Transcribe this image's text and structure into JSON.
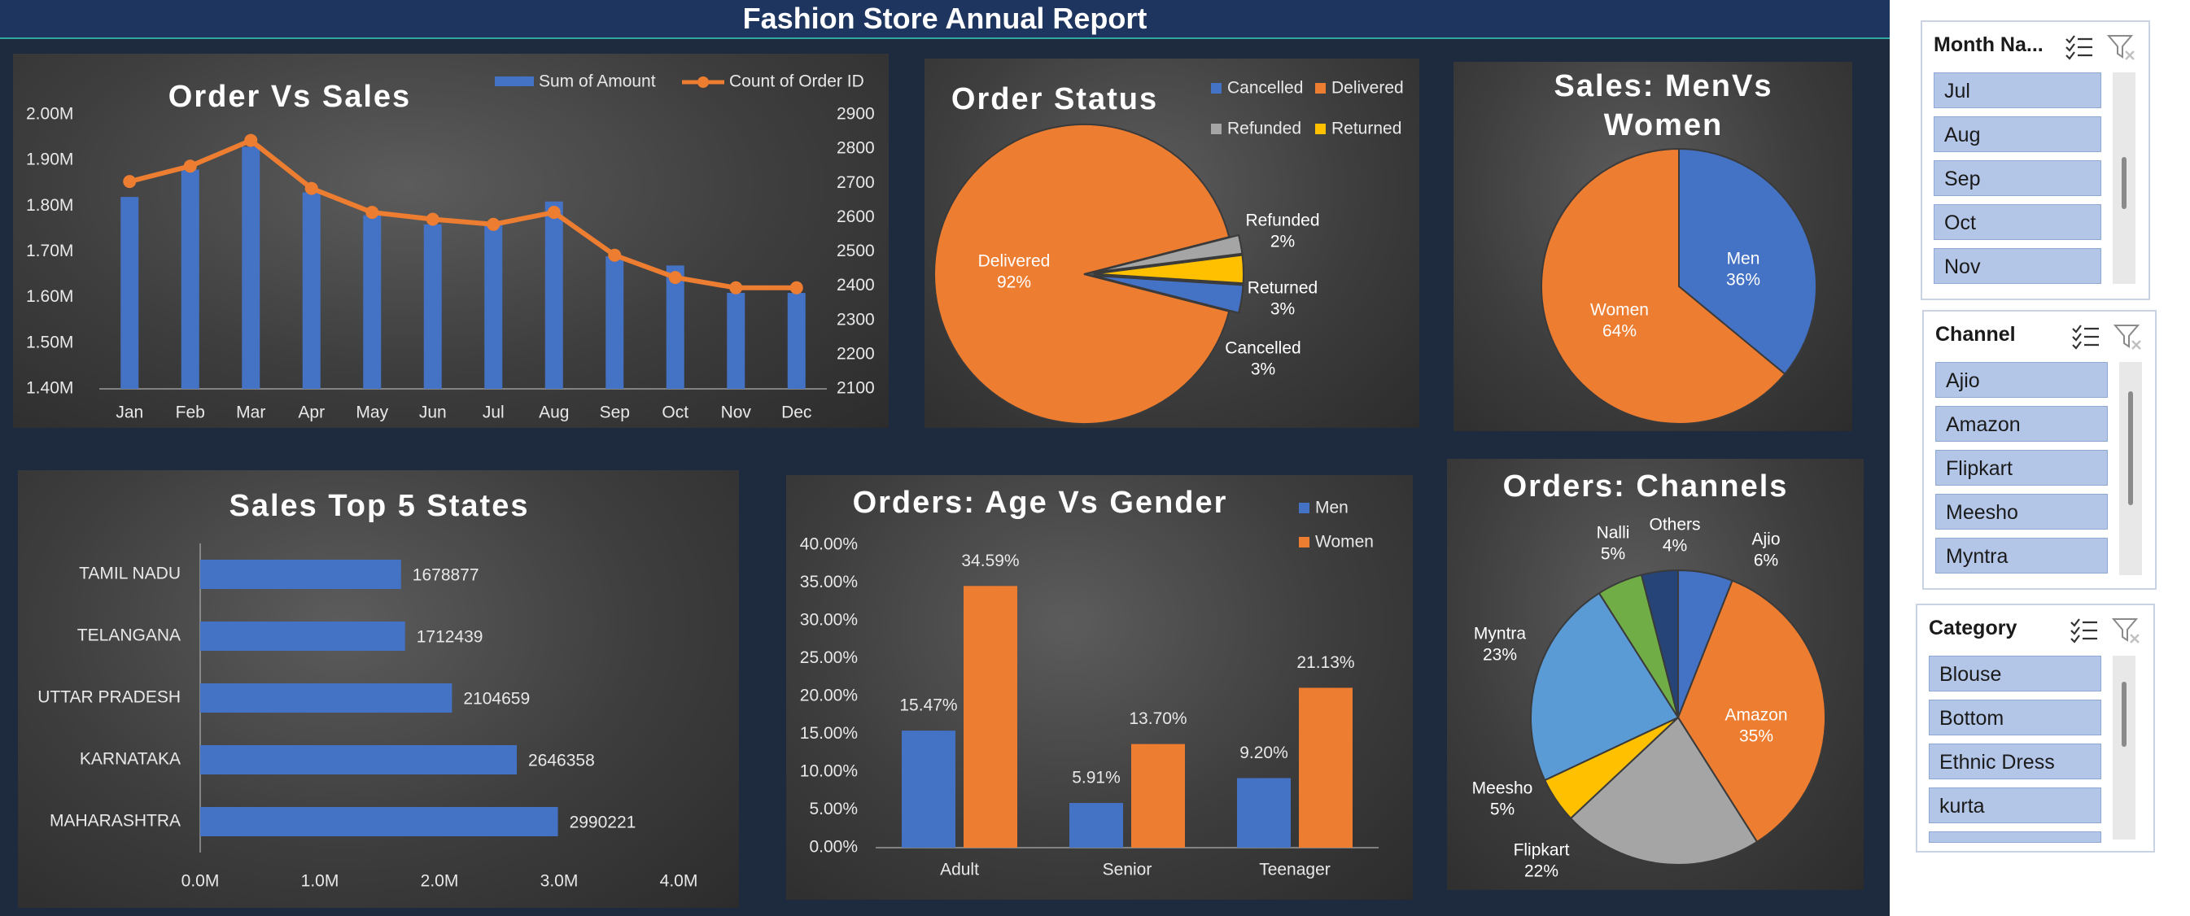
{
  "report": {
    "title": "Fashion Store Annual Report"
  },
  "chart_data": [
    {
      "id": "order-vs-sales",
      "type": "bar",
      "title": "Order Vs Sales",
      "categories": [
        "Jan",
        "Feb",
        "Mar",
        "Apr",
        "May",
        "Jun",
        "Jul",
        "Aug",
        "Sep",
        "Oct",
        "Nov",
        "Dec"
      ],
      "series": [
        {
          "name": "Sum of Amount",
          "kind": "bar",
          "axis": "left",
          "color": "#4472c4",
          "values": [
            1820000,
            1880000,
            1930000,
            1830000,
            1780000,
            1760000,
            1760000,
            1810000,
            1690000,
            1670000,
            1610000,
            1610000
          ]
        },
        {
          "name": "Count of Order ID",
          "kind": "line",
          "axis": "right",
          "color": "#ed7d31",
          "values": [
            2705,
            2750,
            2825,
            2685,
            2615,
            2595,
            2580,
            2615,
            2490,
            2425,
            2395,
            2395
          ]
        }
      ],
      "y_left": {
        "min": 1400000,
        "max": 2000000,
        "ticks": [
          "1.40M",
          "1.50M",
          "1.60M",
          "1.70M",
          "1.80M",
          "1.90M",
          "2.00M"
        ]
      },
      "y_right": {
        "min": 2100,
        "max": 2900,
        "ticks": [
          "2100",
          "2200",
          "2300",
          "2400",
          "2500",
          "2600",
          "2700",
          "2800",
          "2900"
        ]
      },
      "legend": "top-right"
    },
    {
      "id": "order-status",
      "type": "pie",
      "title": "Order Status",
      "slices": [
        {
          "label": "Delivered",
          "value": 92,
          "pct": "92%",
          "color": "#ed7d31"
        },
        {
          "label": "Refunded",
          "value": 2,
          "pct": "2%",
          "color": "#a5a5a5"
        },
        {
          "label": "Returned",
          "value": 3,
          "pct": "3%",
          "color": "#ffc000"
        },
        {
          "label": "Cancelled",
          "value": 3,
          "pct": "3%",
          "color": "#4472c4"
        }
      ],
      "legend_order": [
        "Cancelled",
        "Delivered",
        "Refunded",
        "Returned"
      ],
      "legend": "top-right"
    },
    {
      "id": "sales-men-women",
      "type": "pie",
      "title_lines": [
        "Sales: MenVs",
        "Women"
      ],
      "slices": [
        {
          "label": "Men",
          "value": 36,
          "pct": "36%",
          "color": "#4472c4"
        },
        {
          "label": "Women",
          "value": 64,
          "pct": "64%",
          "color": "#ed7d31"
        }
      ]
    },
    {
      "id": "top-states",
      "type": "bar",
      "orientation": "horizontal",
      "title": "Sales Top 5 States",
      "categories": [
        "TAMIL NADU",
        "TELANGANA",
        "UTTAR PRADESH",
        "KARNATAKA",
        "MAHARASHTRA"
      ],
      "values": [
        1678877,
        1712439,
        2104659,
        2646358,
        2990221
      ],
      "value_labels": [
        "1678877",
        "1712439",
        "2104659",
        "2646358",
        "2990221"
      ],
      "x_range": [
        0,
        4000000
      ],
      "x_ticks": [
        "0.0M",
        "1.0M",
        "2.0M",
        "3.0M",
        "4.0M"
      ],
      "color": "#4472c4"
    },
    {
      "id": "age-gender",
      "type": "bar",
      "title": "Orders: Age Vs Gender",
      "categories": [
        "Adult",
        "Senior",
        "Teenager"
      ],
      "series": [
        {
          "name": "Men",
          "color": "#4472c4",
          "values": [
            15.47,
            5.91,
            9.2
          ],
          "labels": [
            "15.47%",
            "5.91%",
            "9.20%"
          ]
        },
        {
          "name": "Women",
          "color": "#ed7d31",
          "values": [
            34.59,
            13.7,
            21.13
          ],
          "labels": [
            "34.59%",
            "13.70%",
            "21.13%"
          ]
        }
      ],
      "y_range": [
        0,
        40
      ],
      "y_ticks": [
        "0.00%",
        "5.00%",
        "10.00%",
        "15.00%",
        "20.00%",
        "25.00%",
        "30.00%",
        "35.00%",
        "40.00%"
      ],
      "legend": "top-right"
    },
    {
      "id": "order-channels",
      "type": "pie",
      "title": "Orders: Channels",
      "slices": [
        {
          "label": "Ajio",
          "value": 6,
          "pct": "6%",
          "color": "#4472c4"
        },
        {
          "label": "Amazon",
          "value": 35,
          "pct": "35%",
          "color": "#ed7d31"
        },
        {
          "label": "Flipkart",
          "value": 22,
          "pct": "22%",
          "color": "#a5a5a5"
        },
        {
          "label": "Meesho",
          "value": 5,
          "pct": "5%",
          "color": "#ffc000"
        },
        {
          "label": "Myntra",
          "value": 23,
          "pct": "23%",
          "color": "#5b9bd5"
        },
        {
          "label": "Nalli",
          "value": 5,
          "pct": "5%",
          "color": "#70ad47"
        },
        {
          "label": "Others",
          "value": 4,
          "pct": "4%",
          "color": "#264478"
        }
      ]
    }
  ],
  "slicers": {
    "month": {
      "title": "Month Na...",
      "items": [
        "Jul",
        "Aug",
        "Sep",
        "Oct",
        "Nov"
      ]
    },
    "channel": {
      "title": "Channel",
      "items": [
        "Ajio",
        "Amazon",
        "Flipkart",
        "Meesho",
        "Myntra"
      ]
    },
    "category": {
      "title": "Category",
      "items": [
        "Blouse",
        "Bottom",
        "Ethnic Dress",
        "kurta"
      ]
    }
  }
}
